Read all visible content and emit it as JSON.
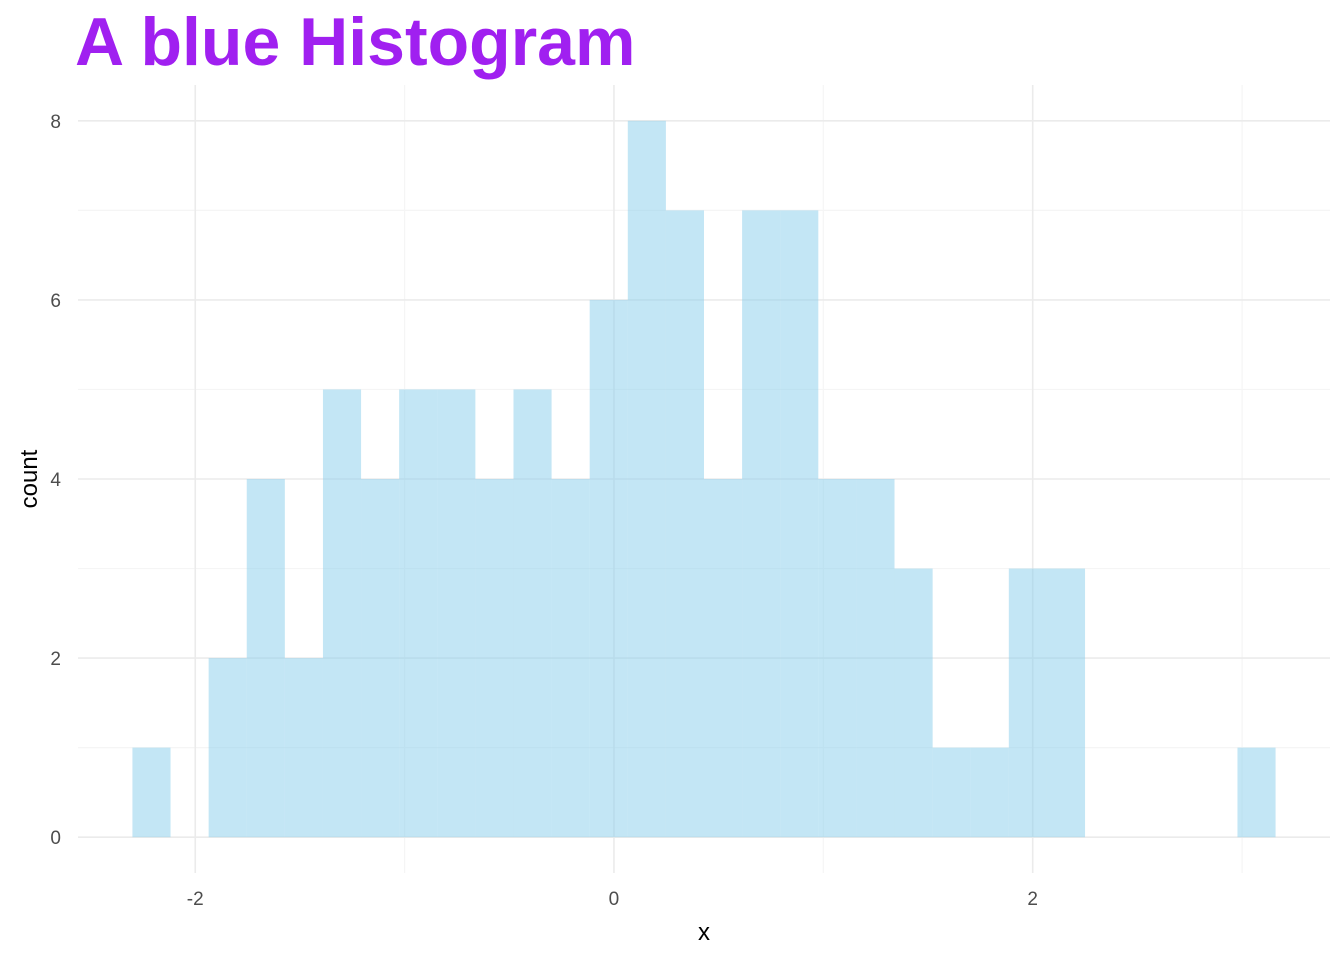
{
  "chart_data": {
    "type": "bar",
    "title": "A blue Histogram",
    "xlabel": "x",
    "ylabel": "count",
    "bin_width": 0.182,
    "bins": [
      {
        "start": -2.3,
        "end": -2.118,
        "count": 1
      },
      {
        "start": -2.118,
        "end": -1.936,
        "count": 0
      },
      {
        "start": -1.936,
        "end": -1.754,
        "count": 2
      },
      {
        "start": -1.754,
        "end": -1.572,
        "count": 4
      },
      {
        "start": -1.572,
        "end": -1.39,
        "count": 2
      },
      {
        "start": -1.39,
        "end": -1.208,
        "count": 5
      },
      {
        "start": -1.208,
        "end": -1.026,
        "count": 4
      },
      {
        "start": -1.026,
        "end": -0.844,
        "count": 5
      },
      {
        "start": -0.844,
        "end": -0.662,
        "count": 5
      },
      {
        "start": -0.662,
        "end": -0.48,
        "count": 4
      },
      {
        "start": -0.48,
        "end": -0.298,
        "count": 5
      },
      {
        "start": -0.298,
        "end": -0.116,
        "count": 4
      },
      {
        "start": -0.116,
        "end": 0.066,
        "count": 6
      },
      {
        "start": 0.066,
        "end": 0.248,
        "count": 8
      },
      {
        "start": 0.248,
        "end": 0.43,
        "count": 7
      },
      {
        "start": 0.43,
        "end": 0.612,
        "count": 4
      },
      {
        "start": 0.612,
        "end": 0.794,
        "count": 7
      },
      {
        "start": 0.794,
        "end": 0.976,
        "count": 7
      },
      {
        "start": 0.976,
        "end": 1.158,
        "count": 4
      },
      {
        "start": 1.158,
        "end": 1.34,
        "count": 4
      },
      {
        "start": 1.34,
        "end": 1.522,
        "count": 3
      },
      {
        "start": 1.522,
        "end": 1.704,
        "count": 1
      },
      {
        "start": 1.704,
        "end": 1.886,
        "count": 1
      },
      {
        "start": 1.886,
        "end": 2.068,
        "count": 3
      },
      {
        "start": 2.068,
        "end": 2.25,
        "count": 3
      },
      {
        "start": 2.25,
        "end": 2.432,
        "count": 0
      },
      {
        "start": 2.432,
        "end": 2.614,
        "count": 0
      },
      {
        "start": 2.614,
        "end": 2.796,
        "count": 0
      },
      {
        "start": 2.796,
        "end": 2.978,
        "count": 0
      },
      {
        "start": 2.978,
        "end": 3.16,
        "count": 1
      }
    ],
    "x_ticks": [
      -2,
      0,
      2
    ],
    "x_tick_labels": [
      "-2",
      "0",
      "2"
    ],
    "y_ticks": [
      0,
      2,
      4,
      6,
      8
    ],
    "y_tick_labels": [
      "0",
      "2",
      "4",
      "6",
      "8"
    ],
    "xlim": [
      -2.56,
      3.42
    ],
    "ylim": [
      -0.4,
      8.4
    ],
    "grid": true,
    "legend": "none",
    "colors": {
      "bar_fill": "#87ceeb",
      "bar_opacity": 0.5,
      "title": "#a020f0",
      "grid_major": "#ebebeb",
      "grid_minor": "#f5f5f5"
    }
  }
}
